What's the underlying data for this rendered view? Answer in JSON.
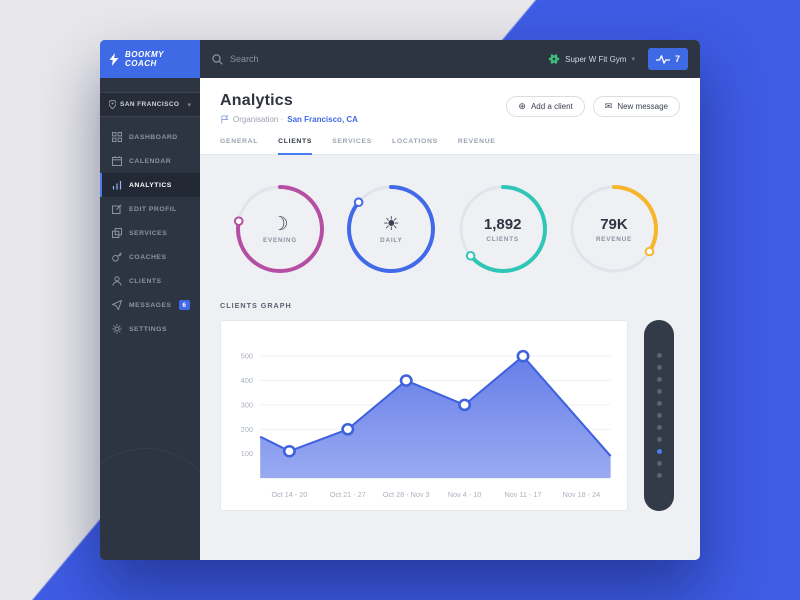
{
  "colors": {
    "accent": "#3f6ae5",
    "sidebar": "#2d3442",
    "bg_blue": "#3e5ce4",
    "bg_gray": "#e8e8eb"
  },
  "sidebar": {
    "logo": {
      "line1": "BOOKMY",
      "line2": "COACH"
    },
    "location": {
      "label": "SAN FRANCISCO"
    },
    "items": [
      {
        "label": "DASHBOARD"
      },
      {
        "label": "CALENDAR"
      },
      {
        "label": "ANALYTICS",
        "active": true
      },
      {
        "label": "EDIT PROFIL"
      },
      {
        "label": "SERVICES"
      },
      {
        "label": "COACHES"
      },
      {
        "label": "CLIENTS"
      },
      {
        "label": "MESSAGES",
        "badge": "6"
      },
      {
        "label": "SETTINGS"
      }
    ]
  },
  "topbar": {
    "search_placeholder": "Search",
    "gym_name": "Super W Fit Gym",
    "notification_count": "7"
  },
  "header": {
    "title": "Analytics",
    "subtitle_prefix": "Organisation ·",
    "subtitle_link": "San Francisco, CA",
    "add_client_label": "Add a client",
    "new_message_label": "New message"
  },
  "tabs": [
    {
      "label": "GENERAL"
    },
    {
      "label": "CLIENTS",
      "active": true
    },
    {
      "label": "SERVICES"
    },
    {
      "label": "LOCATIONS"
    },
    {
      "label": "REVENUE"
    }
  ],
  "rings": [
    {
      "kind": "icon",
      "icon": "moon-icon",
      "glyph": "☽",
      "label": "EVENING",
      "color": "#b44fa4",
      "percent": 78
    },
    {
      "kind": "icon",
      "icon": "sun-icon",
      "glyph": "☀",
      "label": "DAILY",
      "color": "#4169e8",
      "percent": 86
    },
    {
      "kind": "value",
      "value": "1,892",
      "label": "CLIENTS",
      "color": "#2fc6b7",
      "percent": 64
    },
    {
      "kind": "value",
      "value": "79K",
      "label": "REVENUE",
      "color": "#f7b52c",
      "percent": 34
    }
  ],
  "section_title": "CLIENTS GRAPH",
  "chart_data": {
    "type": "area",
    "title": "CLIENTS GRAPH",
    "categories": [
      "Oct 14 - 20",
      "Oct 21 - 27",
      "Oct 28 - Nov 3",
      "Nov 4 - 10",
      "Nov 11 - 17",
      "Nov 18 - 24"
    ],
    "values": [
      110,
      200,
      400,
      300,
      500,
      90
    ],
    "markers": [
      true,
      true,
      true,
      true,
      true,
      false
    ],
    "lead_in": 170,
    "ylim": [
      0,
      550
    ],
    "yticks": [
      100,
      200,
      300,
      400,
      500
    ],
    "grid": true,
    "line_color": "#3e61dd",
    "fill_top": "#6079e7",
    "fill_bottom": "#95a6f1"
  },
  "scroll": {
    "dot_count": 11,
    "active_index": 8
  }
}
